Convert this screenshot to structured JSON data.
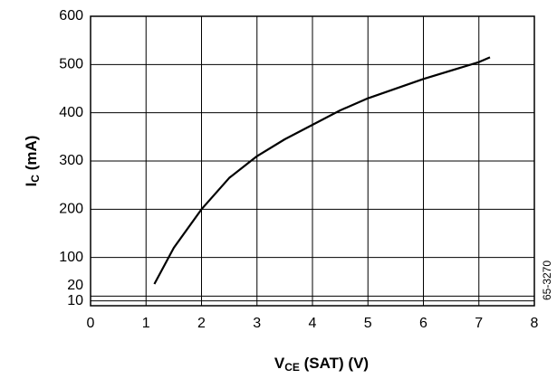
{
  "chart_data": {
    "type": "line",
    "x_label": {
      "main": "V",
      "sub": "CE",
      "rest": " (SAT) (V)"
    },
    "y_label": {
      "main": "I",
      "sub": "C",
      "rest": " (mA)"
    },
    "figure_code": "65-3270",
    "x": [
      1.15,
      1.5,
      2,
      2.5,
      3,
      3.5,
      4,
      4.5,
      5,
      6,
      7,
      7.2
    ],
    "series": [
      {
        "color": "#000000",
        "values": [
          45,
          120,
          200,
          265,
          310,
          345,
          375,
          405,
          430,
          470,
          505,
          515
        ]
      }
    ],
    "xlim": [
      0,
      8
    ],
    "xticks": [
      0,
      1,
      2,
      3,
      4,
      5,
      6,
      7,
      8
    ],
    "ylim": [
      0,
      600
    ],
    "yticks": [
      10,
      20,
      100,
      200,
      300,
      400,
      500,
      600
    ],
    "grid": true
  }
}
